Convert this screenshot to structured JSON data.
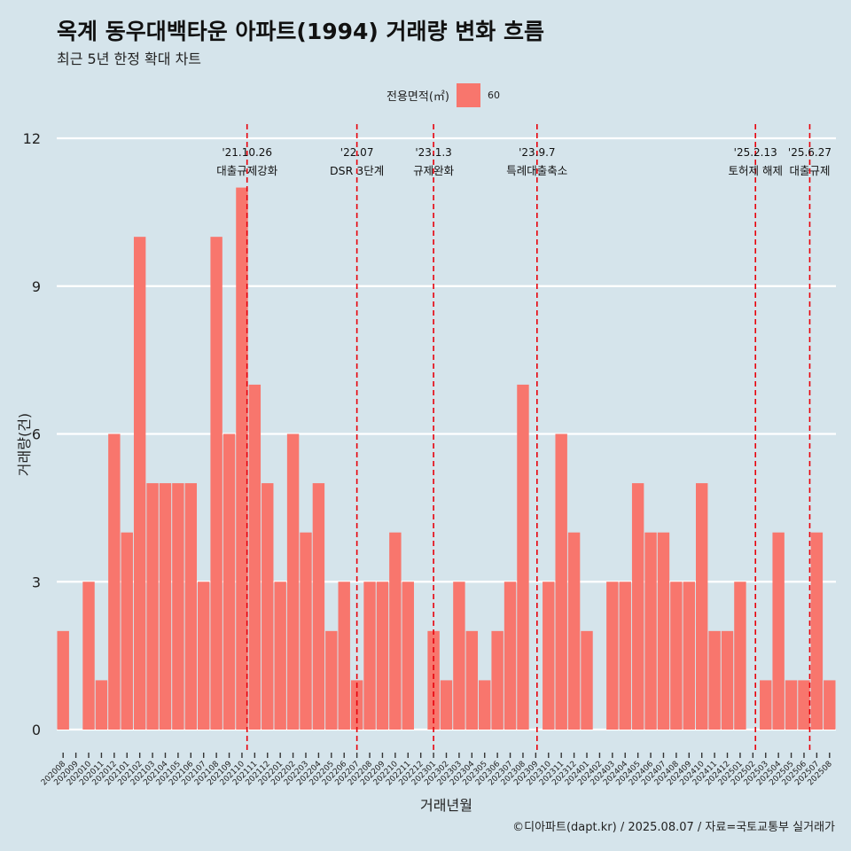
{
  "header": {
    "title": "옥계 동우대백타운 아파트(1994) 거래량 변화 흐름",
    "subtitle": "최근 5년 한정 확대 차트"
  },
  "legend": {
    "title": "전용면적(㎡)",
    "items": [
      {
        "label": "60",
        "color": "#f8766d"
      }
    ]
  },
  "caption": "©디아파트(dapt.kr) / 2025.08.07 / 자료=국토교통부 실거래가",
  "colors": {
    "background": "#d5e4eb",
    "bar": "#f8766d",
    "gridline": "#ffffff",
    "event_line": "#e8000b"
  },
  "chart_data": {
    "type": "bar",
    "xlabel": "거래년월",
    "ylabel": "거래량(건)",
    "ylim": [
      0,
      12
    ],
    "yticks": [
      0,
      3,
      6,
      9,
      12
    ],
    "grid": true,
    "legend_placement": "top",
    "categories": [
      "202008",
      "202009",
      "202010",
      "202011",
      "202012",
      "202101",
      "202102",
      "202103",
      "202104",
      "202105",
      "202106",
      "202107",
      "202108",
      "202109",
      "202110",
      "202111",
      "202112",
      "202201",
      "202202",
      "202203",
      "202204",
      "202205",
      "202206",
      "202207",
      "202208",
      "202209",
      "202210",
      "202211",
      "202212",
      "202301",
      "202302",
      "202303",
      "202304",
      "202305",
      "202306",
      "202307",
      "202308",
      "202309",
      "202310",
      "202311",
      "202312",
      "202401",
      "202402",
      "202403",
      "202404",
      "202405",
      "202406",
      "202407",
      "202408",
      "202409",
      "202410",
      "202411",
      "202412",
      "202501",
      "202502",
      "202503",
      "202504",
      "202505",
      "202506",
      "202507",
      "202508"
    ],
    "series": [
      {
        "name": "60",
        "values": [
          2,
          0,
          3,
          1,
          6,
          4,
          10,
          5,
          5,
          5,
          5,
          3,
          10,
          6,
          11,
          7,
          5,
          3,
          6,
          4,
          5,
          2,
          3,
          1,
          3,
          3,
          4,
          3,
          0,
          2,
          1,
          3,
          2,
          1,
          2,
          3,
          7,
          0,
          3,
          6,
          4,
          2,
          0,
          3,
          3,
          5,
          4,
          4,
          3,
          3,
          5,
          2,
          2,
          3,
          0,
          1,
          4,
          1,
          1,
          4,
          1
        ]
      }
    ],
    "events": [
      {
        "date": "'21.10.26",
        "label": "대출규제강화",
        "x": "202110.8"
      },
      {
        "date": "'22.07",
        "label": "DSR 3단계",
        "x": "202207"
      },
      {
        "date": "'23.1.3",
        "label": "규제완화",
        "x": "202301"
      },
      {
        "date": "'23.9.7",
        "label": "특례대출축소",
        "x": "202309.2"
      },
      {
        "date": "'25.2.13",
        "label": "토허제 해제",
        "x": "202502.4"
      },
      {
        "date": "'25.6.27",
        "label": "대출규제",
        "x": "202506.9"
      }
    ]
  }
}
